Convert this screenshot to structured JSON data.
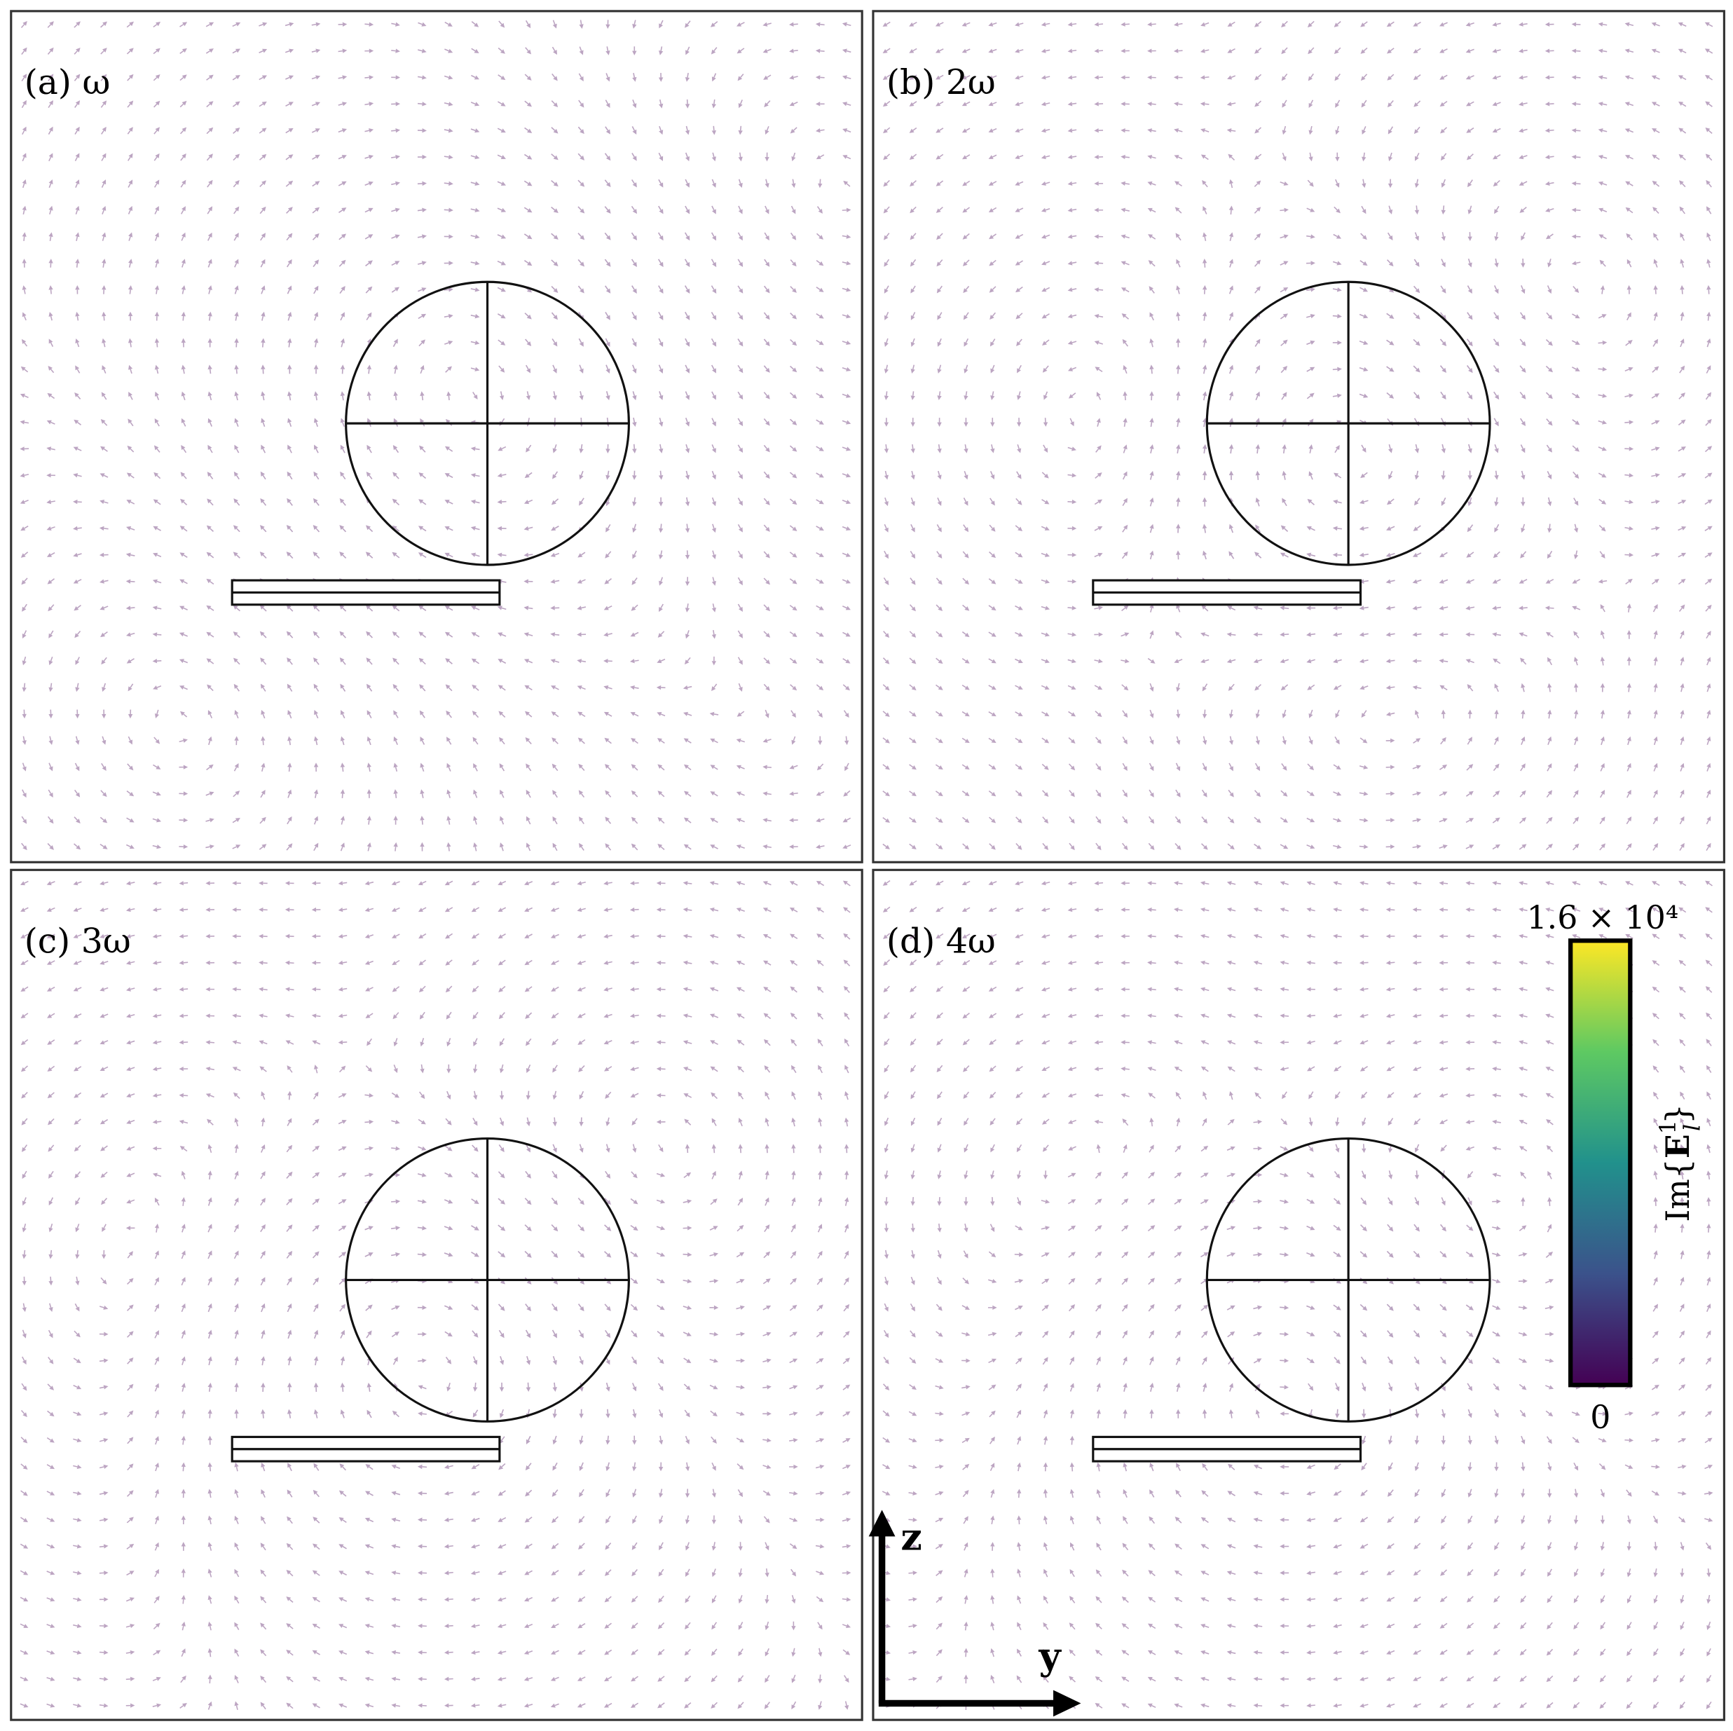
{
  "panels": [
    {
      "label": "(a) ω"
    },
    {
      "label": "(b) 2ω"
    },
    {
      "label": "(c) 3ω"
    },
    {
      "label": "(d) 4ω"
    }
  ],
  "colorbar": {
    "max": {
      "value": 16000,
      "label": "1.6 × 10⁴"
    },
    "min": 0,
    "title": {
      "prefix": "Im{",
      "symbol": "E",
      "sup": "1",
      "sub": "l",
      "suffix": "}"
    }
  },
  "axes": {
    "vertical": "z",
    "horizontal": "y"
  }
}
